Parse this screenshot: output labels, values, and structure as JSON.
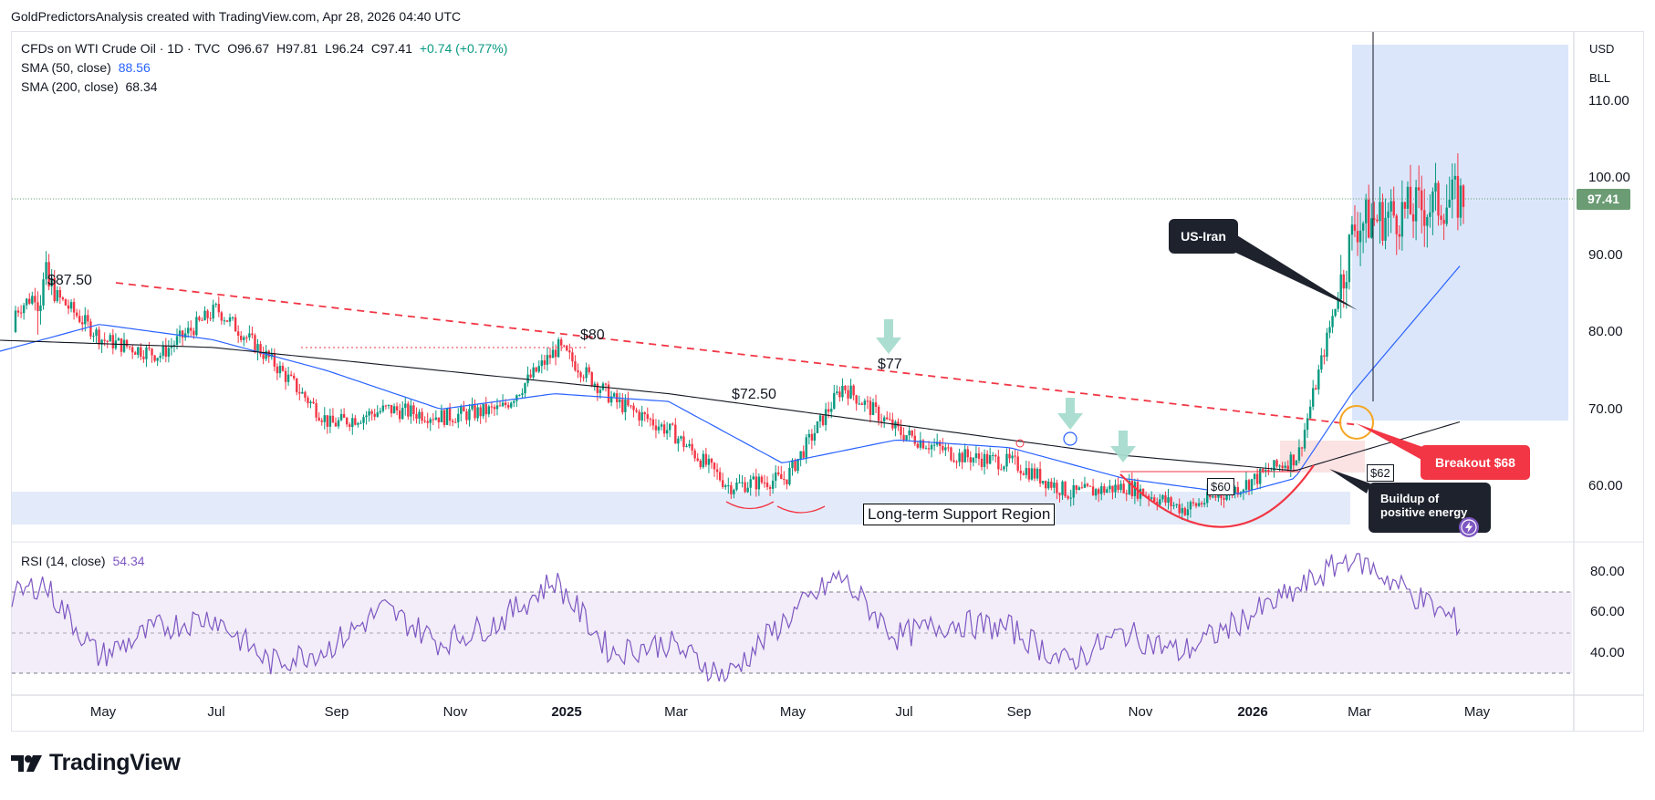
{
  "caption": "GoldPredictorsAnalysis created with TradingView.com, Apr 28, 2026 04:40 UTC",
  "legend": {
    "symbol": "CFDs on WTI Crude Oil · 1D · TVC",
    "ohlc": {
      "o": "O96.67",
      "h": "H97.81",
      "l": "L96.24",
      "c": "C97.41",
      "chg": "+0.74 (+0.77%)"
    },
    "sma50_label": "SMA (50, close)",
    "sma50_value": "88.56",
    "sma200_label": "SMA (200, close)",
    "sma200_value": "68.34",
    "rsi_label": "RSI (14, close)",
    "rsi_value": "54.34"
  },
  "axis": {
    "currency": "USD",
    "unit": "BLL",
    "price_ticks": [
      "110.00",
      "100.00",
      "90.00",
      "80.00",
      "70.00",
      "60.00"
    ],
    "rsi_ticks": [
      "80.00",
      "60.00",
      "40.00"
    ],
    "last_price": "97.41",
    "dates": [
      {
        "label": "May",
        "bold": false
      },
      {
        "label": "Jul",
        "bold": false
      },
      {
        "label": "Sep",
        "bold": false
      },
      {
        "label": "Nov",
        "bold": false
      },
      {
        "label": "2025",
        "bold": true
      },
      {
        "label": "Mar",
        "bold": false
      },
      {
        "label": "May",
        "bold": false
      },
      {
        "label": "Jul",
        "bold": false
      },
      {
        "label": "Sep",
        "bold": false
      },
      {
        "label": "Nov",
        "bold": false
      },
      {
        "label": "2026",
        "bold": true
      },
      {
        "label": "Mar",
        "bold": false
      },
      {
        "label": "May",
        "bold": false
      }
    ]
  },
  "annotations": {
    "p8750": "$87.50",
    "p80": "$80",
    "p7250": "$72.50",
    "p77": "$77",
    "p60": "$60",
    "p62": "$62",
    "support": "Long-term Support Region",
    "us_iran": "US-Iran",
    "breakout": "Breakout $68",
    "buildup_1": "Buildup of",
    "buildup_2": "positive energy"
  },
  "colors": {
    "up": "#089981",
    "down": "#f23645",
    "sma50": "#2962ff",
    "sma200": "#131722",
    "rsi": "#7e57c2",
    "resistance": "#f23645",
    "support_fill": "#e3ebfa",
    "highlight": "#dbe6fb",
    "last_tag": "#6b9c74"
  },
  "footer": {
    "brand": "TradingView"
  },
  "chart_data": [
    {
      "type": "line",
      "title": "CFDs on WTI Crude Oil · 1D · TVC",
      "x_range": [
        "2024-04",
        "2026-04-28"
      ],
      "ylim": [
        54,
        118
      ],
      "y_scale": "linear",
      "grid": false,
      "series": [
        {
          "name": "CFDs on WTI Crude Oil · 1D · TVC",
          "x": [
            "2024-03",
            "2024-04",
            "2024-05",
            "2024-06",
            "2024-07",
            "2024-08",
            "2024-09",
            "2024-10",
            "2024-11",
            "2024-12",
            "2025-01",
            "2025-02",
            "2025-03",
            "2025-04",
            "2025-05",
            "2025-06",
            "2025-07",
            "2025-08",
            "2025-09",
            "2025-10",
            "2025-11",
            "2025-12",
            "2026-01",
            "2026-02",
            "2026-03",
            "2026-04-28"
          ],
          "values": [
            80,
            86,
            79,
            77,
            83,
            76,
            68,
            70,
            69,
            70,
            78,
            71,
            67,
            60,
            61,
            73,
            67,
            64,
            63,
            59,
            60,
            57,
            60,
            64,
            94,
            97.41
          ]
        },
        {
          "name": "SMA (50, close)",
          "x": [
            "2024-03",
            "2024-05",
            "2024-07",
            "2024-09",
            "2024-11",
            "2025-01",
            "2025-03",
            "2025-05",
            "2025-07",
            "2025-09",
            "2025-11",
            "2026-01",
            "2026-02",
            "2026-03",
            "2026-04-28"
          ],
          "values": [
            77,
            81,
            79,
            75,
            70,
            72,
            71,
            63,
            66,
            65,
            61,
            59,
            61,
            72,
            88.56
          ]
        },
        {
          "name": "SMA (200, close)",
          "x": [
            "2024-03",
            "2024-07",
            "2024-11",
            "2025-03",
            "2025-07",
            "2025-11",
            "2026-02",
            "2026-04-28"
          ],
          "values": [
            79,
            78,
            75,
            72,
            68,
            64,
            62,
            68.34
          ]
        }
      ],
      "price_scale_ticks": [
        110,
        100,
        90,
        80,
        70,
        60
      ],
      "resistance_line": {
        "from": {
          "date": "2024-04",
          "value": 86.8
        },
        "to": {
          "date": "2026-02-25",
          "value": 68
        }
      },
      "support_region": {
        "from": 55.5,
        "to": 60
      }
    },
    {
      "type": "line",
      "title": "RSI (14, close)",
      "ylim": [
        25,
        90
      ],
      "levels": [
        70,
        50,
        30
      ],
      "series": [
        {
          "name": "RSI (14, close)",
          "x": [
            "2024-03",
            "2024-04",
            "2024-05",
            "2024-06",
            "2024-07",
            "2024-08",
            "2024-09",
            "2024-10",
            "2024-11",
            "2024-12",
            "2025-01",
            "2025-02",
            "2025-03",
            "2025-04",
            "2025-05",
            "2025-06",
            "2025-07",
            "2025-08",
            "2025-09",
            "2025-10",
            "2025-11",
            "2025-12",
            "2026-01",
            "2026-02",
            "2026-03",
            "2026-04-28"
          ],
          "values": [
            60,
            75,
            38,
            52,
            58,
            35,
            42,
            62,
            45,
            55,
            76,
            40,
            45,
            28,
            55,
            78,
            48,
            55,
            52,
            35,
            50,
            40,
            55,
            70,
            88,
            54.34
          ]
        }
      ]
    }
  ]
}
